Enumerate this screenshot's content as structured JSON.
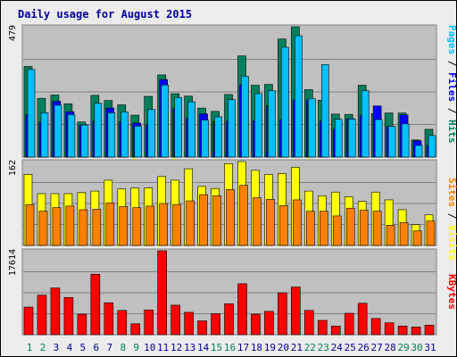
{
  "title": "Daily usage for August 2015",
  "colors": {
    "background": "#ececec",
    "plot_bg": "#c0c0c0",
    "title": "#0000a0",
    "hits": "#00805c",
    "files": "#0000ff",
    "pages": "#00c0ff",
    "visits": "#ffff00",
    "sites": "#ff8000",
    "kbytes": "#ff0000",
    "weekday_label": "#0000a0",
    "weekend_label": "#00805c"
  },
  "chart_data": [
    {
      "type": "bar",
      "panel": "hits-files-pages",
      "ymax_label": "479",
      "ylim": [
        0,
        479
      ],
      "grid": true,
      "legend_label_parts": [
        {
          "text": "Pages",
          "color": "#00c0ff"
        },
        {
          "text": " / ",
          "color": "#000000"
        },
        {
          "text": "Files",
          "color": "#0000ff"
        },
        {
          "text": " / ",
          "color": "#000000"
        },
        {
          "text": "Hits",
          "color": "#00805c"
        }
      ],
      "categories": [
        "1",
        "2",
        "3",
        "4",
        "5",
        "6",
        "7",
        "8",
        "9",
        "10",
        "11",
        "12",
        "13",
        "14",
        "15",
        "16",
        "17",
        "18",
        "19",
        "20",
        "21",
        "22",
        "23",
        "24",
        "25",
        "26",
        "27",
        "28",
        "29",
        "30",
        "31"
      ],
      "series": [
        {
          "name": "Hits",
          "color": "#00805c",
          "values": [
            333,
            216,
            228,
            196,
            129,
            227,
            208,
            192,
            154,
            223,
            302,
            233,
            224,
            180,
            168,
            230,
            372,
            264,
            267,
            434,
            479,
            248,
            209,
            158,
            157,
            264,
            160,
            162,
            162,
            63,
            102
          ]
        },
        {
          "name": "Files",
          "color": "#0000ff",
          "values": [
            156,
            128,
            205,
            167,
            118,
            132,
            180,
            130,
            125,
            120,
            285,
            178,
            142,
            159,
            131,
            132,
            265,
            134,
            189,
            138,
            210,
            210,
            132,
            102,
            141,
            152,
            188,
            113,
            155,
            60,
            43
          ]
        },
        {
          "name": "Pages",
          "color": "#00c0ff",
          "values": [
            322,
            163,
            191,
            156,
            118,
            198,
            163,
            166,
            114,
            175,
            265,
            219,
            203,
            136,
            148,
            211,
            297,
            233,
            244,
            404,
            446,
            215,
            340,
            139,
            140,
            244,
            138,
            113,
            122,
            43,
            79
          ]
        }
      ]
    },
    {
      "type": "bar",
      "panel": "visits-sites",
      "ymax_label": "162",
      "ylim": [
        0,
        162
      ],
      "grid": true,
      "legend_label_parts": [
        {
          "text": "Sites",
          "color": "#ff8000"
        },
        {
          "text": " / ",
          "color": "#000000"
        },
        {
          "text": "Visits",
          "color": "#ffff00"
        }
      ],
      "categories": [
        "1",
        "2",
        "3",
        "4",
        "5",
        "6",
        "7",
        "8",
        "9",
        "10",
        "11",
        "12",
        "13",
        "14",
        "15",
        "16",
        "17",
        "18",
        "19",
        "20",
        "21",
        "22",
        "23",
        "24",
        "25",
        "26",
        "27",
        "28",
        "29",
        "30",
        "31"
      ],
      "series": [
        {
          "name": "Visits",
          "color": "#ffff00",
          "values": [
            137,
            100,
            100,
            100,
            102,
            105,
            126,
            109,
            111,
            111,
            133,
            126,
            148,
            114,
            110,
            158,
            162,
            145,
            137,
            139,
            151,
            105,
            96,
            103,
            94,
            85,
            103,
            88,
            69,
            40,
            59
          ]
        },
        {
          "name": "Sites",
          "color": "#ff8000",
          "values": [
            79,
            66,
            73,
            76,
            69,
            70,
            82,
            75,
            73,
            76,
            81,
            79,
            86,
            98,
            96,
            108,
            116,
            92,
            89,
            77,
            88,
            66,
            66,
            57,
            72,
            68,
            66,
            39,
            44,
            28,
            47
          ]
        }
      ]
    },
    {
      "type": "bar",
      "panel": "kbytes",
      "ymax_label": "17614",
      "ylim": [
        0,
        17614
      ],
      "grid": true,
      "legend_label_parts": [
        {
          "text": "KBytes",
          "color": "#ff0000"
        }
      ],
      "categories": [
        "1",
        "2",
        "3",
        "4",
        "5",
        "6",
        "7",
        "8",
        "9",
        "10",
        "11",
        "12",
        "13",
        "14",
        "15",
        "16",
        "17",
        "18",
        "19",
        "20",
        "21",
        "22",
        "23",
        "24",
        "25",
        "26",
        "27",
        "28",
        "29",
        "30",
        "31"
      ],
      "series": [
        {
          "name": "KBytes",
          "color": "#ff0000",
          "values": [
            5800,
            8300,
            9800,
            7800,
            4300,
            12700,
            6700,
            5100,
            2300,
            5200,
            17614,
            6200,
            4700,
            2900,
            4400,
            6500,
            10700,
            4300,
            4900,
            8800,
            10000,
            5100,
            3000,
            1800,
            4500,
            6600,
            3400,
            2500,
            1800,
            1600,
            2000
          ]
        }
      ]
    }
  ],
  "x_labels": [
    {
      "text": "1",
      "weekend": true
    },
    {
      "text": "2",
      "weekend": true
    },
    {
      "text": "3",
      "weekend": false
    },
    {
      "text": "4",
      "weekend": false
    },
    {
      "text": "5",
      "weekend": false
    },
    {
      "text": "6",
      "weekend": false
    },
    {
      "text": "7",
      "weekend": false
    },
    {
      "text": "8",
      "weekend": true
    },
    {
      "text": "9",
      "weekend": true
    },
    {
      "text": "10",
      "weekend": false
    },
    {
      "text": "11",
      "weekend": false
    },
    {
      "text": "12",
      "weekend": false
    },
    {
      "text": "13",
      "weekend": false
    },
    {
      "text": "14",
      "weekend": false
    },
    {
      "text": "15",
      "weekend": true
    },
    {
      "text": "16",
      "weekend": true
    },
    {
      "text": "17",
      "weekend": false
    },
    {
      "text": "18",
      "weekend": false
    },
    {
      "text": "19",
      "weekend": false
    },
    {
      "text": "20",
      "weekend": false
    },
    {
      "text": "21",
      "weekend": false
    },
    {
      "text": "22",
      "weekend": true
    },
    {
      "text": "23",
      "weekend": true
    },
    {
      "text": "24",
      "weekend": false
    },
    {
      "text": "25",
      "weekend": false
    },
    {
      "text": "26",
      "weekend": false
    },
    {
      "text": "27",
      "weekend": false
    },
    {
      "text": "28",
      "weekend": false
    },
    {
      "text": "29",
      "weekend": true
    },
    {
      "text": "30",
      "weekend": true
    },
    {
      "text": "31",
      "weekend": false
    }
  ]
}
